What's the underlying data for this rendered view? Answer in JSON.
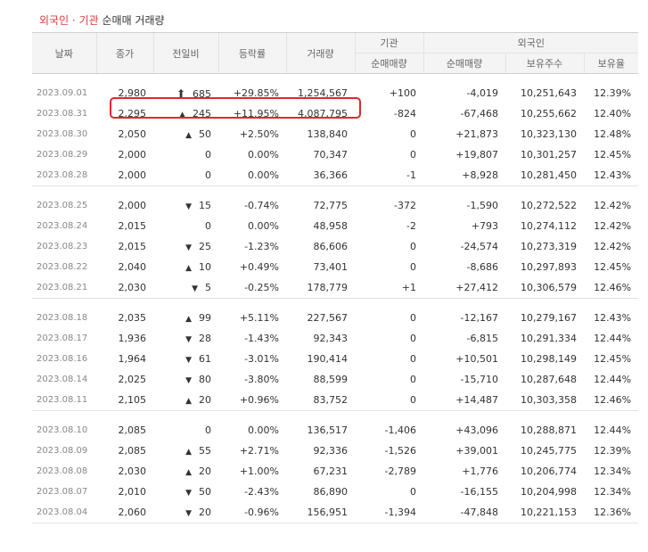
{
  "title": {
    "part1": "외국인 · 기관",
    "part2": "순매매 거래량"
  },
  "headers": {
    "date": "날짜",
    "close": "종가",
    "change": "전일비",
    "rate": "등락률",
    "volume": "거래량",
    "institution": "기관",
    "inst_net": "순매매량",
    "foreign": "외국인",
    "foreign_net": "순매매량",
    "holdings": "보유주수",
    "ratio": "보유율"
  },
  "groups": [
    [
      {
        "date": "2023.09.01",
        "close": "2,980",
        "dir": "upper",
        "change": "685",
        "rate": "+29.85%",
        "volume": "1,254,567",
        "inst": "+100",
        "foreign_net": "-4,019",
        "holdings": "10,251,643",
        "ratio": "12.39%"
      },
      {
        "date": "2023.08.31",
        "close": "2,295",
        "dir": "up",
        "change": "245",
        "rate": "+11.95%",
        "volume": "4,087,795",
        "inst": "-824",
        "foreign_net": "-67,468",
        "holdings": "10,255,662",
        "ratio": "12.40%"
      },
      {
        "date": "2023.08.30",
        "close": "2,050",
        "dir": "up",
        "change": "50",
        "rate": "+2.50%",
        "volume": "138,840",
        "inst": "0",
        "foreign_net": "+21,873",
        "holdings": "10,323,130",
        "ratio": "12.48%"
      },
      {
        "date": "2023.08.29",
        "close": "2,000",
        "dir": "flat",
        "change": "0",
        "rate": "0.00%",
        "volume": "70,347",
        "inst": "0",
        "foreign_net": "+19,807",
        "holdings": "10,301,257",
        "ratio": "12.45%"
      },
      {
        "date": "2023.08.28",
        "close": "2,000",
        "dir": "flat",
        "change": "0",
        "rate": "0.00%",
        "volume": "36,366",
        "inst": "-1",
        "foreign_net": "+8,928",
        "holdings": "10,281,450",
        "ratio": "12.43%"
      }
    ],
    [
      {
        "date": "2023.08.25",
        "close": "2,000",
        "dir": "down",
        "change": "15",
        "rate": "-0.74%",
        "volume": "72,775",
        "inst": "-372",
        "foreign_net": "-1,590",
        "holdings": "10,272,522",
        "ratio": "12.42%"
      },
      {
        "date": "2023.08.24",
        "close": "2,015",
        "dir": "flat",
        "change": "0",
        "rate": "0.00%",
        "volume": "48,958",
        "inst": "-2",
        "foreign_net": "+793",
        "holdings": "10,274,112",
        "ratio": "12.42%"
      },
      {
        "date": "2023.08.23",
        "close": "2,015",
        "dir": "down",
        "change": "25",
        "rate": "-1.23%",
        "volume": "86,606",
        "inst": "0",
        "foreign_net": "-24,574",
        "holdings": "10,273,319",
        "ratio": "12.42%"
      },
      {
        "date": "2023.08.22",
        "close": "2,040",
        "dir": "up",
        "change": "10",
        "rate": "+0.49%",
        "volume": "73,401",
        "inst": "0",
        "foreign_net": "-8,686",
        "holdings": "10,297,893",
        "ratio": "12.45%"
      },
      {
        "date": "2023.08.21",
        "close": "2,030",
        "dir": "down",
        "change": "5",
        "rate": "-0.25%",
        "volume": "178,779",
        "inst": "+1",
        "foreign_net": "+27,412",
        "holdings": "10,306,579",
        "ratio": "12.46%"
      }
    ],
    [
      {
        "date": "2023.08.18",
        "close": "2,035",
        "dir": "up",
        "change": "99",
        "rate": "+5.11%",
        "volume": "227,567",
        "inst": "0",
        "foreign_net": "-12,167",
        "holdings": "10,279,167",
        "ratio": "12.43%"
      },
      {
        "date": "2023.08.17",
        "close": "1,936",
        "dir": "down",
        "change": "28",
        "rate": "-1.43%",
        "volume": "92,343",
        "inst": "0",
        "foreign_net": "-6,815",
        "holdings": "10,291,334",
        "ratio": "12.44%"
      },
      {
        "date": "2023.08.16",
        "close": "1,964",
        "dir": "down",
        "change": "61",
        "rate": "-3.01%",
        "volume": "190,414",
        "inst": "0",
        "foreign_net": "+10,501",
        "holdings": "10,298,149",
        "ratio": "12.45%"
      },
      {
        "date": "2023.08.14",
        "close": "2,025",
        "dir": "down",
        "change": "80",
        "rate": "-3.80%",
        "volume": "88,599",
        "inst": "0",
        "foreign_net": "-15,710",
        "holdings": "10,287,648",
        "ratio": "12.44%"
      },
      {
        "date": "2023.08.11",
        "close": "2,105",
        "dir": "up",
        "change": "20",
        "rate": "+0.96%",
        "volume": "83,752",
        "inst": "0",
        "foreign_net": "+14,487",
        "holdings": "10,303,358",
        "ratio": "12.46%"
      }
    ],
    [
      {
        "date": "2023.08.10",
        "close": "2,085",
        "dir": "flat",
        "change": "0",
        "rate": "0.00%",
        "volume": "136,517",
        "inst": "-1,406",
        "foreign_net": "+43,096",
        "holdings": "10,288,871",
        "ratio": "12.44%"
      },
      {
        "date": "2023.08.09",
        "close": "2,085",
        "dir": "up",
        "change": "55",
        "rate": "+2.71%",
        "volume": "92,336",
        "inst": "-1,526",
        "foreign_net": "+39,001",
        "holdings": "10,245,775",
        "ratio": "12.39%"
      },
      {
        "date": "2023.08.08",
        "close": "2,030",
        "dir": "up",
        "change": "20",
        "rate": "+1.00%",
        "volume": "67,231",
        "inst": "-2,789",
        "foreign_net": "+1,776",
        "holdings": "10,206,774",
        "ratio": "12.34%"
      },
      {
        "date": "2023.08.07",
        "close": "2,010",
        "dir": "down",
        "change": "50",
        "rate": "-2.43%",
        "volume": "86,890",
        "inst": "0",
        "foreign_net": "-16,155",
        "holdings": "10,204,998",
        "ratio": "12.34%"
      },
      {
        "date": "2023.08.04",
        "close": "2,060",
        "dir": "down",
        "change": "20",
        "rate": "-0.96%",
        "volume": "156,951",
        "inst": "-1,394",
        "foreign_net": "-47,848",
        "holdings": "10,221,153",
        "ratio": "12.36%"
      }
    ]
  ],
  "icons": {
    "upper": "upper-limit-arrow-icon",
    "up": "up-triangle-icon",
    "down": "down-triangle-icon"
  },
  "colors": {
    "up": "#e22f2f",
    "down": "#1e64c8",
    "highlight": "#e0272f"
  },
  "highlighted_row": "2023.08.31"
}
